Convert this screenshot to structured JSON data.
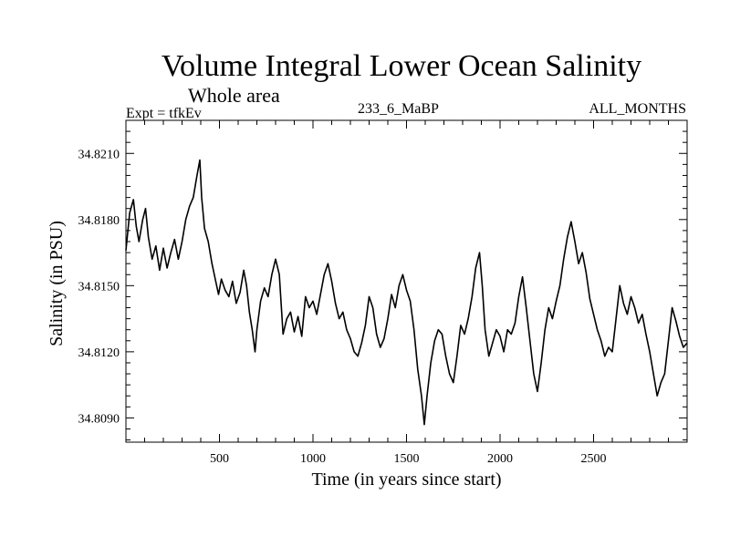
{
  "chart_data": {
    "type": "line",
    "title": "Volume Integral Lower Ocean Salinity",
    "subtitle": "Whole area",
    "left_note": "Expt = tfkEv",
    "center_note": "233_6_MaBP",
    "right_note": "ALL_MONTHS",
    "xlabel": "Time (in years since start)",
    "ylabel": "Salinity (in PSU)",
    "xlim": [
      0,
      3000
    ],
    "ylim": [
      34.8079,
      34.8225
    ],
    "x_ticks": [
      500,
      1000,
      1500,
      2000,
      2500
    ],
    "y_ticks": [
      34.809,
      34.812,
      34.815,
      34.818,
      34.821
    ],
    "y_tick_labels": [
      "34.8090",
      "34.8120",
      "34.8150",
      "34.8180",
      "34.8210"
    ],
    "grid": false,
    "series": [
      {
        "color": "#000000",
        "points": [
          [
            0,
            34.8166
          ],
          [
            20,
            34.8183
          ],
          [
            40,
            34.8189
          ],
          [
            55,
            34.8177
          ],
          [
            70,
            34.817
          ],
          [
            90,
            34.818
          ],
          [
            105,
            34.8185
          ],
          [
            120,
            34.8172
          ],
          [
            140,
            34.8162
          ],
          [
            160,
            34.8168
          ],
          [
            180,
            34.8157
          ],
          [
            200,
            34.8167
          ],
          [
            220,
            34.8158
          ],
          [
            240,
            34.8165
          ],
          [
            260,
            34.8171
          ],
          [
            280,
            34.8162
          ],
          [
            300,
            34.817
          ],
          [
            320,
            34.818
          ],
          [
            340,
            34.8186
          ],
          [
            360,
            34.819
          ],
          [
            380,
            34.82
          ],
          [
            395,
            34.8207
          ],
          [
            405,
            34.819
          ],
          [
            420,
            34.8176
          ],
          [
            440,
            34.817
          ],
          [
            460,
            34.816
          ],
          [
            480,
            34.8152
          ],
          [
            495,
            34.8146
          ],
          [
            510,
            34.8153
          ],
          [
            530,
            34.8148
          ],
          [
            550,
            34.8145
          ],
          [
            570,
            34.8152
          ],
          [
            590,
            34.8142
          ],
          [
            610,
            34.8147
          ],
          [
            630,
            34.8157
          ],
          [
            645,
            34.815
          ],
          [
            660,
            34.8138
          ],
          [
            675,
            34.813
          ],
          [
            690,
            34.812
          ],
          [
            700,
            34.813
          ],
          [
            720,
            34.8143
          ],
          [
            740,
            34.8149
          ],
          [
            760,
            34.8145
          ],
          [
            780,
            34.8155
          ],
          [
            800,
            34.8162
          ],
          [
            820,
            34.8155
          ],
          [
            840,
            34.8128
          ],
          [
            860,
            34.8135
          ],
          [
            880,
            34.8138
          ],
          [
            900,
            34.8129
          ],
          [
            920,
            34.8136
          ],
          [
            940,
            34.8127
          ],
          [
            960,
            34.8145
          ],
          [
            980,
            34.814
          ],
          [
            1000,
            34.8143
          ],
          [
            1020,
            34.8137
          ],
          [
            1040,
            34.8146
          ],
          [
            1060,
            34.8155
          ],
          [
            1080,
            34.816
          ],
          [
            1100,
            34.8152
          ],
          [
            1120,
            34.8142
          ],
          [
            1140,
            34.8135
          ],
          [
            1160,
            34.8138
          ],
          [
            1180,
            34.813
          ],
          [
            1200,
            34.8126
          ],
          [
            1220,
            34.812
          ],
          [
            1240,
            34.8118
          ],
          [
            1260,
            34.8124
          ],
          [
            1280,
            34.8132
          ],
          [
            1300,
            34.8145
          ],
          [
            1320,
            34.814
          ],
          [
            1340,
            34.8128
          ],
          [
            1360,
            34.8122
          ],
          [
            1380,
            34.8126
          ],
          [
            1400,
            34.8135
          ],
          [
            1420,
            34.8146
          ],
          [
            1440,
            34.814
          ],
          [
            1460,
            34.815
          ],
          [
            1480,
            34.8155
          ],
          [
            1500,
            34.8148
          ],
          [
            1520,
            34.8143
          ],
          [
            1540,
            34.813
          ],
          [
            1560,
            34.8112
          ],
          [
            1580,
            34.81
          ],
          [
            1595,
            34.8087
          ],
          [
            1610,
            34.81
          ],
          [
            1630,
            34.8115
          ],
          [
            1650,
            34.8125
          ],
          [
            1670,
            34.813
          ],
          [
            1690,
            34.8128
          ],
          [
            1710,
            34.8118
          ],
          [
            1730,
            34.811
          ],
          [
            1750,
            34.8106
          ],
          [
            1770,
            34.8118
          ],
          [
            1790,
            34.8132
          ],
          [
            1810,
            34.8128
          ],
          [
            1830,
            34.8135
          ],
          [
            1850,
            34.8145
          ],
          [
            1870,
            34.8158
          ],
          [
            1890,
            34.8165
          ],
          [
            1905,
            34.815
          ],
          [
            1920,
            34.813
          ],
          [
            1940,
            34.8118
          ],
          [
            1960,
            34.8124
          ],
          [
            1980,
            34.813
          ],
          [
            2000,
            34.8127
          ],
          [
            2020,
            34.812
          ],
          [
            2040,
            34.813
          ],
          [
            2060,
            34.8128
          ],
          [
            2080,
            34.8133
          ],
          [
            2100,
            34.8145
          ],
          [
            2120,
            34.8154
          ],
          [
            2140,
            34.814
          ],
          [
            2160,
            34.8125
          ],
          [
            2180,
            34.811
          ],
          [
            2200,
            34.8102
          ],
          [
            2220,
            34.8115
          ],
          [
            2240,
            34.813
          ],
          [
            2260,
            34.814
          ],
          [
            2280,
            34.8135
          ],
          [
            2300,
            34.8143
          ],
          [
            2320,
            34.815
          ],
          [
            2340,
            34.8162
          ],
          [
            2360,
            34.8172
          ],
          [
            2380,
            34.8179
          ],
          [
            2400,
            34.817
          ],
          [
            2420,
            34.816
          ],
          [
            2440,
            34.8165
          ],
          [
            2460,
            34.8156
          ],
          [
            2480,
            34.8144
          ],
          [
            2500,
            34.8137
          ],
          [
            2520,
            34.813
          ],
          [
            2540,
            34.8125
          ],
          [
            2560,
            34.8118
          ],
          [
            2580,
            34.8122
          ],
          [
            2600,
            34.812
          ],
          [
            2620,
            34.8135
          ],
          [
            2640,
            34.815
          ],
          [
            2660,
            34.8142
          ],
          [
            2680,
            34.8137
          ],
          [
            2700,
            34.8145
          ],
          [
            2720,
            34.814
          ],
          [
            2740,
            34.8133
          ],
          [
            2760,
            34.8137
          ],
          [
            2780,
            34.8128
          ],
          [
            2800,
            34.812
          ],
          [
            2820,
            34.811
          ],
          [
            2840,
            34.81
          ],
          [
            2860,
            34.8106
          ],
          [
            2880,
            34.811
          ],
          [
            2900,
            34.8125
          ],
          [
            2920,
            34.814
          ],
          [
            2940,
            34.8134
          ],
          [
            2960,
            34.8127
          ],
          [
            2980,
            34.8122
          ],
          [
            3000,
            34.8124
          ]
        ]
      }
    ]
  }
}
